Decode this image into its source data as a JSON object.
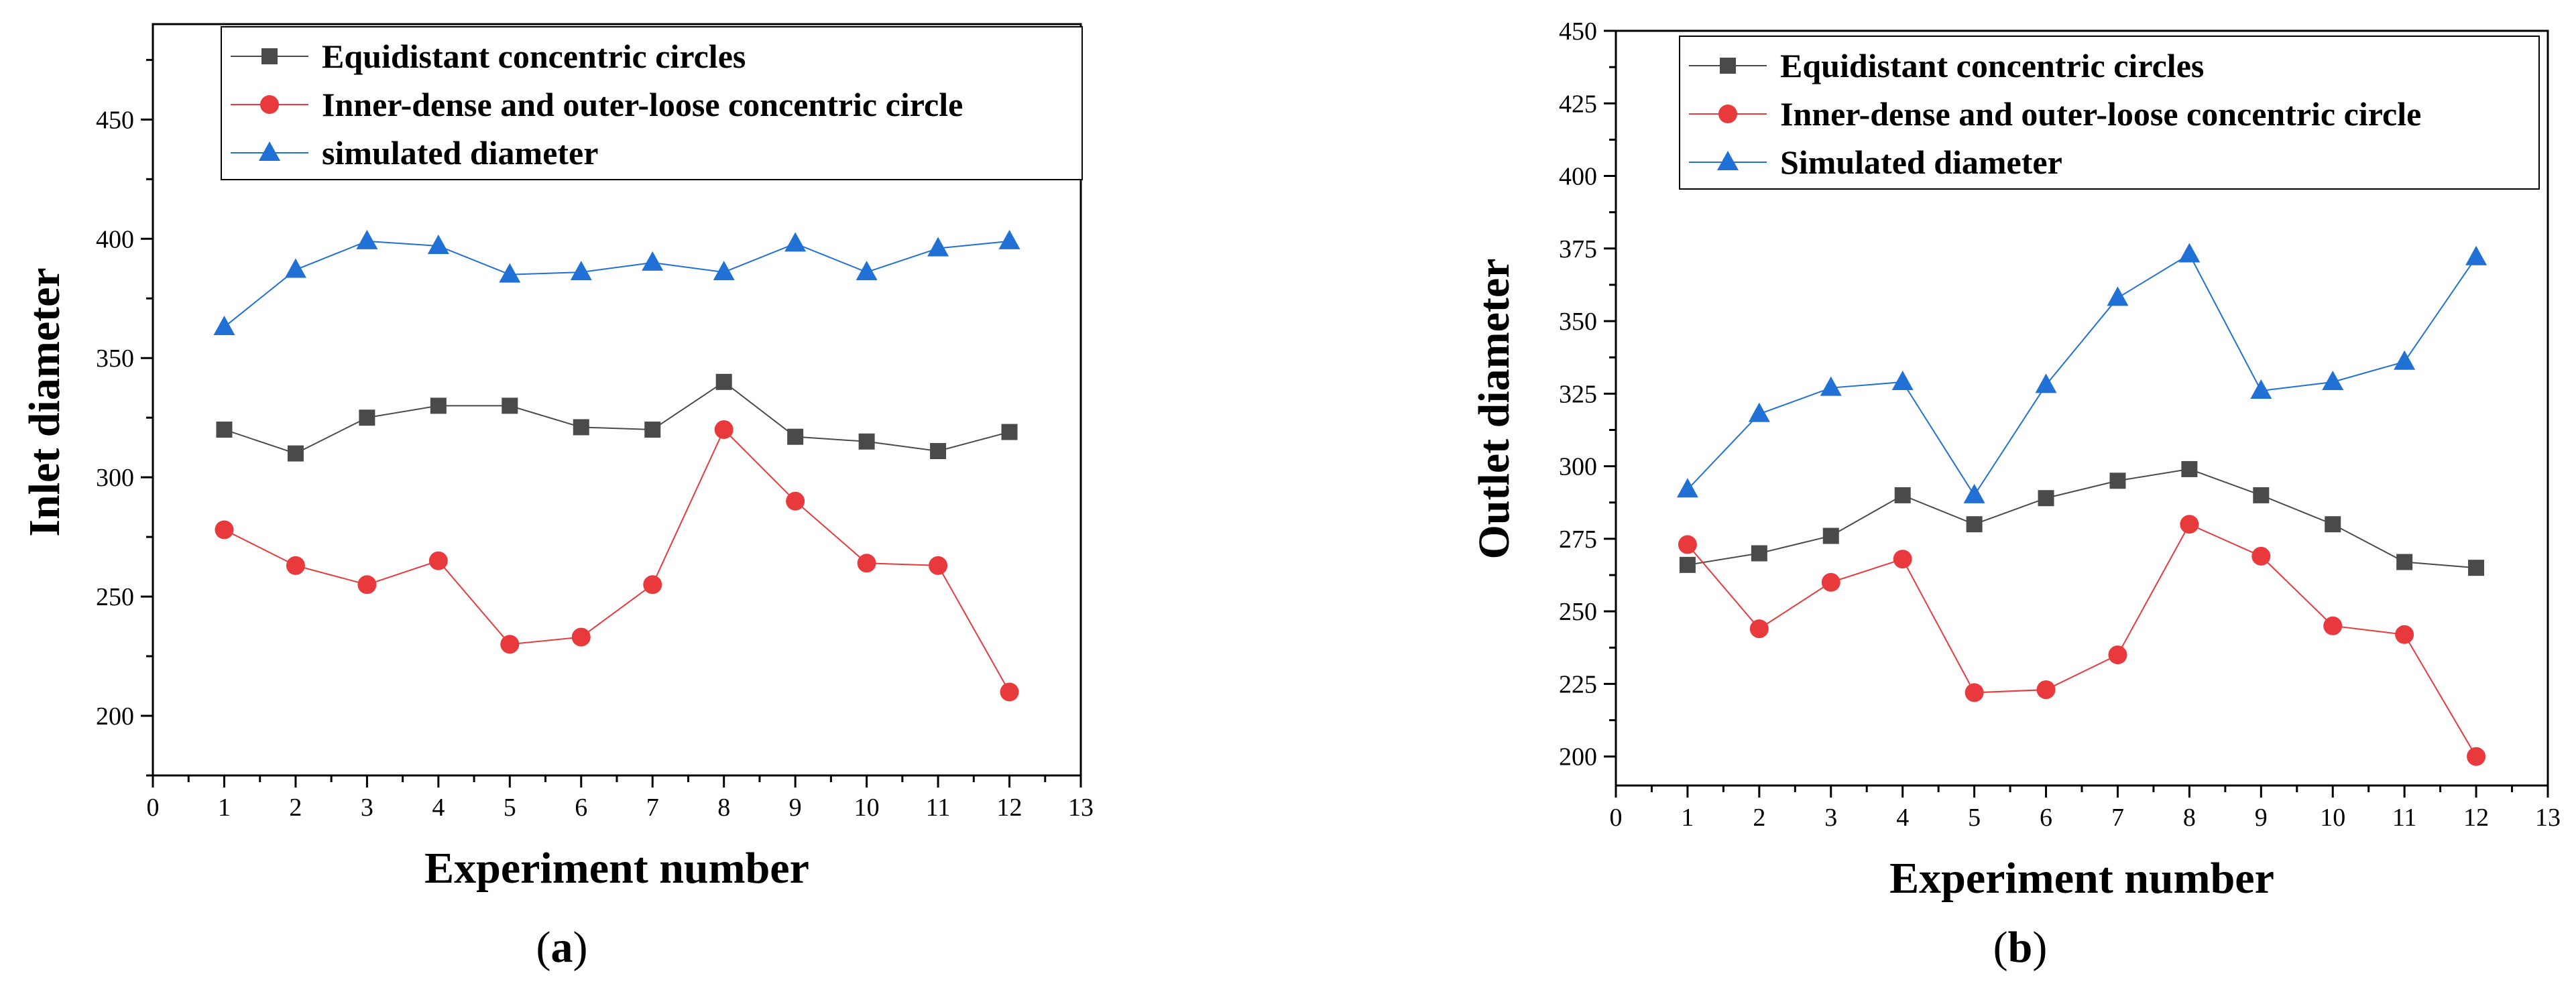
{
  "chart_data": [
    {
      "id": "a",
      "type": "line",
      "panel_label": "a",
      "xlabel": "Experiment number",
      "ylabel": "Inlet diameter",
      "xlim": [
        0,
        13
      ],
      "ylim": [
        175,
        490
      ],
      "xticks": [
        0,
        1,
        2,
        3,
        4,
        5,
        6,
        7,
        8,
        9,
        10,
        11,
        12,
        13
      ],
      "yticks": [
        200,
        250,
        300,
        350,
        400,
        450
      ],
      "x": [
        1,
        2,
        3,
        4,
        5,
        6,
        7,
        8,
        9,
        10,
        11,
        12
      ],
      "legend_position": "top",
      "series": [
        {
          "name": "Equidistant concentric circles",
          "marker": "square",
          "color": "#4a4a4a",
          "values": [
            320,
            310,
            325,
            330,
            330,
            321,
            320,
            340,
            317,
            315,
            311,
            319
          ]
        },
        {
          "name": "Inner-dense and outer-loose concentric circle",
          "marker": "circle",
          "color": "#e8393c",
          "values": [
            278,
            263,
            255,
            265,
            230,
            233,
            255,
            320,
            290,
            264,
            263,
            210
          ]
        },
        {
          "name": "simulated diameter",
          "marker": "triangle",
          "color": "#2070d6",
          "values": [
            363,
            387,
            399,
            397,
            385,
            386,
            390,
            386,
            398,
            386,
            396,
            399
          ]
        }
      ]
    },
    {
      "id": "b",
      "type": "line",
      "panel_label": "b",
      "xlabel": "Experiment number",
      "ylabel": "Outlet diameter",
      "xlim": [
        0,
        13
      ],
      "ylim": [
        190,
        450
      ],
      "xticks": [
        0,
        1,
        2,
        3,
        4,
        5,
        6,
        7,
        8,
        9,
        10,
        11,
        12,
        13
      ],
      "yticks": [
        200,
        225,
        250,
        275,
        300,
        325,
        350,
        375,
        400,
        425,
        450
      ],
      "x": [
        1,
        2,
        3,
        4,
        5,
        6,
        7,
        8,
        9,
        10,
        11,
        12
      ],
      "legend_position": "top",
      "series": [
        {
          "name": "Equidistant concentric circles",
          "marker": "square",
          "color": "#4a4a4a",
          "values": [
            266,
            270,
            276,
            290,
            280,
            289,
            295,
            299,
            290,
            280,
            267,
            265
          ]
        },
        {
          "name": "Inner-dense and outer-loose concentric circle",
          "marker": "circle",
          "color": "#e8393c",
          "values": [
            273,
            244,
            260,
            268,
            222,
            223,
            235,
            280,
            269,
            245,
            242,
            200
          ]
        },
        {
          "name": "Simulated diameter",
          "marker": "triangle",
          "color": "#2070d6",
          "values": [
            292,
            318,
            327,
            329,
            290,
            328,
            358,
            373,
            326,
            329,
            336,
            372
          ]
        }
      ]
    }
  ]
}
